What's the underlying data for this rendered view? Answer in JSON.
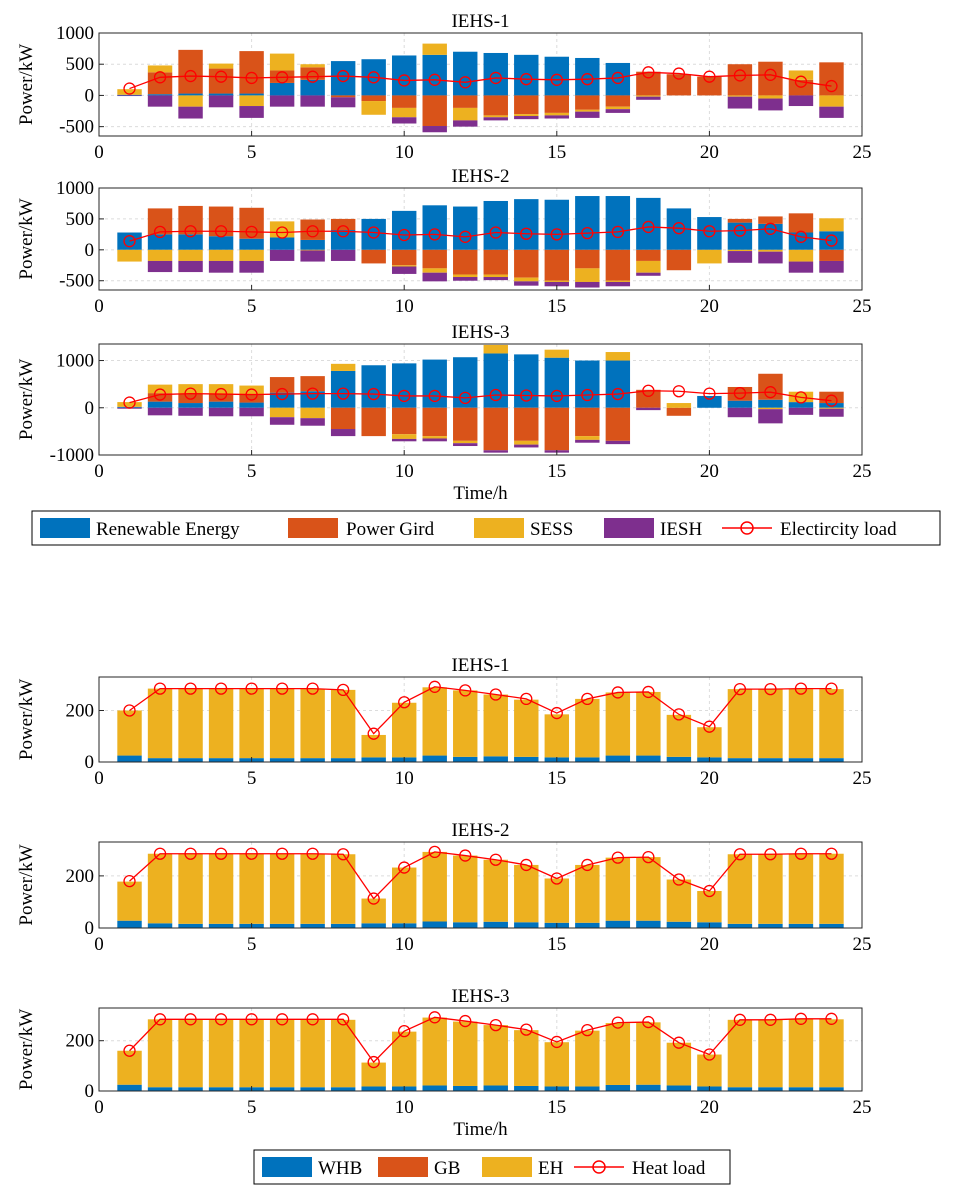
{
  "figure_electricity": {
    "legend": [
      {
        "name": "Renewable Energy",
        "kind": "bar",
        "color": "#0072BD"
      },
      {
        "name": "Power Gird",
        "kind": "bar",
        "color": "#D95319"
      },
      {
        "name": "SESS",
        "kind": "bar",
        "color": "#EDB120"
      },
      {
        "name": "IESH",
        "kind": "bar",
        "color": "#7E2F8E"
      },
      {
        "name": "Electircity load",
        "kind": "line",
        "color": "#FF0000"
      }
    ]
  },
  "figure_heat": {
    "legend": [
      {
        "name": "WHB",
        "kind": "bar",
        "color": "#0072BD"
      },
      {
        "name": "GB",
        "kind": "bar",
        "color": "#D95319"
      },
      {
        "name": "EH",
        "kind": "bar",
        "color": "#EDB120"
      },
      {
        "name": "Heat load",
        "kind": "line",
        "color": "#FF0000"
      }
    ]
  },
  "chart_data": [
    {
      "type": "bar",
      "stacked": true,
      "title": "IEHS-1",
      "xlabel": "",
      "ylabel": "Power/kW",
      "xlim": [
        0,
        25
      ],
      "ylim": [
        -650,
        1000
      ],
      "xticks": [
        "0",
        "5",
        "10",
        "15",
        "20",
        "25"
      ],
      "yticks": [
        "-500",
        "0",
        "500",
        "1000"
      ],
      "x": [
        1,
        2,
        3,
        4,
        5,
        6,
        7,
        8,
        9,
        10,
        11,
        12,
        13,
        14,
        15,
        16,
        17,
        18,
        19,
        20,
        21,
        22,
        23,
        24
      ],
      "series": [
        {
          "name": "Renewable Energy",
          "color": "#0072BD",
          "values": [
            10,
            20,
            30,
            30,
            30,
            200,
            250,
            550,
            580,
            640,
            650,
            700,
            680,
            650,
            620,
            600,
            520,
            0,
            0,
            0,
            0,
            0,
            0,
            0
          ]
        },
        {
          "name": "Power Gird",
          "color": "#D95319",
          "values": [
            0,
            350,
            700,
            400,
            680,
            200,
            200,
            -30,
            -90,
            -200,
            -490,
            -200,
            -320,
            -300,
            -280,
            -230,
            -180,
            380,
            340,
            300,
            500,
            540,
            250,
            530
          ]
        },
        {
          "name": "SESS",
          "color": "#EDB120",
          "values": [
            90,
            110,
            -180,
            80,
            -170,
            270,
            50,
            0,
            -220,
            -150,
            180,
            -200,
            -30,
            -30,
            -40,
            -30,
            -40,
            -20,
            0,
            0,
            -20,
            -50,
            150,
            -180
          ]
        },
        {
          "name": "IESH",
          "color": "#7E2F8E",
          "values": [
            -10,
            -180,
            -190,
            -190,
            -190,
            -180,
            -180,
            -160,
            0,
            -100,
            -100,
            -100,
            -50,
            -50,
            -50,
            -100,
            -60,
            -50,
            0,
            0,
            -190,
            -190,
            -170,
            -180
          ]
        }
      ],
      "line": {
        "name": "Electircity load",
        "color": "#FF0000",
        "values": [
          110,
          290,
          310,
          300,
          280,
          290,
          300,
          310,
          290,
          240,
          250,
          210,
          280,
          260,
          250,
          260,
          280,
          370,
          350,
          300,
          320,
          330,
          220,
          150
        ]
      }
    },
    {
      "type": "bar",
      "stacked": true,
      "title": "IEHS-2",
      "xlabel": "",
      "ylabel": "Power/kW",
      "xlim": [
        0,
        25
      ],
      "ylim": [
        -650,
        1000
      ],
      "xticks": [
        "0",
        "5",
        "10",
        "15",
        "20",
        "25"
      ],
      "yticks": [
        "-500",
        "0",
        "500",
        "1000"
      ],
      "x": [
        1,
        2,
        3,
        4,
        5,
        6,
        7,
        8,
        9,
        10,
        11,
        12,
        13,
        14,
        15,
        16,
        17,
        18,
        19,
        20,
        21,
        22,
        23,
        24
      ],
      "series": [
        {
          "name": "Renewable Energy",
          "color": "#0072BD",
          "values": [
            280,
            250,
            250,
            220,
            180,
            200,
            160,
            320,
            500,
            630,
            720,
            700,
            790,
            820,
            810,
            870,
            870,
            840,
            670,
            530,
            440,
            420,
            280,
            300
          ]
        },
        {
          "name": "Power Gird",
          "color": "#D95319",
          "values": [
            0,
            420,
            460,
            480,
            500,
            0,
            330,
            180,
            -220,
            -250,
            -300,
            -400,
            -400,
            -450,
            -500,
            -300,
            -500,
            -180,
            -330,
            0,
            60,
            120,
            310,
            -180
          ]
        },
        {
          "name": "SESS",
          "color": "#EDB120",
          "values": [
            -190,
            -180,
            -180,
            -180,
            -180,
            260,
            -10,
            0,
            0,
            -20,
            -70,
            -40,
            -40,
            -60,
            -20,
            -220,
            -20,
            -190,
            0,
            -220,
            -20,
            -30,
            -190,
            210
          ]
        },
        {
          "name": "IESH",
          "color": "#7E2F8E",
          "values": [
            0,
            -180,
            -180,
            -190,
            -190,
            -180,
            -180,
            -180,
            0,
            -120,
            -140,
            -60,
            -50,
            -70,
            -70,
            -90,
            -70,
            -50,
            0,
            0,
            -190,
            -190,
            -180,
            -190
          ]
        }
      ],
      "line": {
        "name": "Electircity load",
        "color": "#FF0000",
        "values": [
          140,
          290,
          300,
          300,
          290,
          280,
          300,
          300,
          280,
          240,
          250,
          210,
          280,
          260,
          250,
          270,
          290,
          370,
          350,
          300,
          310,
          340,
          210,
          150
        ]
      }
    },
    {
      "type": "bar",
      "stacked": true,
      "title": "IEHS-3",
      "xlabel": "Time/h",
      "ylabel": "Power/kW",
      "xlim": [
        0,
        25
      ],
      "ylim": [
        -1000,
        1350
      ],
      "xticks": [
        "0",
        "5",
        "10",
        "15",
        "20",
        "25"
      ],
      "yticks": [
        "-1000",
        "0",
        "1000"
      ],
      "x": [
        1,
        2,
        3,
        4,
        5,
        6,
        7,
        8,
        9,
        10,
        11,
        12,
        13,
        14,
        15,
        16,
        17,
        18,
        19,
        20,
        21,
        22,
        23,
        24
      ],
      "series": [
        {
          "name": "Renewable Energy",
          "color": "#0072BD",
          "values": [
            20,
            130,
            100,
            130,
            110,
            320,
            350,
            780,
            900,
            940,
            1020,
            1070,
            1150,
            1130,
            1060,
            1000,
            1000,
            0,
            0,
            250,
            150,
            170,
            120,
            100
          ]
        },
        {
          "name": "Power Gird",
          "color": "#D95319",
          "values": [
            0,
            180,
            200,
            170,
            180,
            330,
            320,
            -450,
            -600,
            -560,
            -600,
            -700,
            -900,
            -700,
            -900,
            -600,
            -700,
            380,
            -170,
            0,
            290,
            550,
            0,
            240
          ]
        },
        {
          "name": "SESS",
          "color": "#EDB120",
          "values": [
            100,
            180,
            200,
            200,
            180,
            -200,
            -220,
            150,
            0,
            -100,
            -50,
            -50,
            180,
            -80,
            170,
            -80,
            180,
            0,
            100,
            0,
            0,
            -30,
            220,
            -20
          ]
        },
        {
          "name": "IESH",
          "color": "#7E2F8E",
          "values": [
            -20,
            -160,
            -170,
            -180,
            -180,
            -160,
            -160,
            -150,
            0,
            -50,
            -60,
            -60,
            -50,
            -60,
            -50,
            -60,
            -70,
            -50,
            0,
            0,
            -200,
            -300,
            -150,
            -170
          ]
        }
      ],
      "line": {
        "name": "Electircity load",
        "color": "#FF0000",
        "values": [
          110,
          280,
          300,
          290,
          280,
          290,
          300,
          300,
          290,
          250,
          250,
          210,
          270,
          260,
          250,
          270,
          290,
          360,
          350,
          300,
          310,
          330,
          220,
          150
        ]
      }
    },
    {
      "type": "bar",
      "stacked": true,
      "title": "IEHS-1",
      "xlabel": "",
      "ylabel": "Power/kW",
      "xlim": [
        0,
        25
      ],
      "ylim": [
        0,
        330
      ],
      "xticks": [
        "0",
        "5",
        "10",
        "15",
        "20",
        "25"
      ],
      "yticks": [
        "0",
        "200"
      ],
      "x": [
        1,
        2,
        3,
        4,
        5,
        6,
        7,
        8,
        9,
        10,
        11,
        12,
        13,
        14,
        15,
        16,
        17,
        18,
        19,
        20,
        21,
        22,
        23,
        24
      ],
      "series": [
        {
          "name": "WHB",
          "color": "#0072BD",
          "values": [
            25,
            15,
            15,
            15,
            15,
            15,
            15,
            15,
            18,
            18,
            25,
            20,
            22,
            20,
            18,
            18,
            25,
            25,
            20,
            18,
            15,
            15,
            15,
            15
          ]
        },
        {
          "name": "GB",
          "color": "#D95319",
          "values": [
            0,
            0,
            0,
            0,
            0,
            0,
            0,
            0,
            0,
            0,
            0,
            0,
            0,
            0,
            0,
            0,
            0,
            0,
            0,
            0,
            0,
            0,
            0,
            0
          ]
        },
        {
          "name": "EH",
          "color": "#EDB120",
          "values": [
            175,
            270,
            270,
            270,
            270,
            270,
            270,
            265,
            87,
            212,
            265,
            258,
            240,
            222,
            167,
            227,
            245,
            247,
            163,
            117,
            268,
            268,
            268,
            268
          ]
        }
      ],
      "line": {
        "name": "Heat load",
        "color": "#FF0000",
        "values": [
          200,
          285,
          285,
          285,
          285,
          285,
          285,
          280,
          110,
          232,
          292,
          278,
          262,
          245,
          190,
          245,
          270,
          272,
          185,
          137,
          283,
          283,
          285,
          285
        ]
      }
    },
    {
      "type": "bar",
      "stacked": true,
      "title": "IEHS-2",
      "xlabel": "",
      "ylabel": "Power/kW",
      "xlim": [
        0,
        25
      ],
      "ylim": [
        0,
        330
      ],
      "xticks": [
        "0",
        "5",
        "10",
        "15",
        "20",
        "25"
      ],
      "yticks": [
        "0",
        "200"
      ],
      "x": [
        1,
        2,
        3,
        4,
        5,
        6,
        7,
        8,
        9,
        10,
        11,
        12,
        13,
        14,
        15,
        16,
        17,
        18,
        19,
        20,
        21,
        22,
        23,
        24
      ],
      "series": [
        {
          "name": "WHB",
          "color": "#0072BD",
          "values": [
            28,
            18,
            16,
            16,
            16,
            16,
            16,
            16,
            18,
            18,
            25,
            22,
            24,
            22,
            20,
            20,
            28,
            28,
            24,
            22,
            16,
            16,
            16,
            16
          ]
        },
        {
          "name": "GB",
          "color": "#D95319",
          "values": [
            0,
            0,
            0,
            0,
            0,
            0,
            0,
            0,
            0,
            0,
            0,
            0,
            0,
            0,
            0,
            0,
            0,
            0,
            0,
            0,
            0,
            0,
            0,
            0
          ]
        },
        {
          "name": "EH",
          "color": "#EDB120",
          "values": [
            150,
            267,
            269,
            269,
            269,
            269,
            269,
            267,
            95,
            214,
            267,
            256,
            238,
            220,
            170,
            222,
            242,
            244,
            162,
            120,
            267,
            267,
            269,
            269
          ]
        }
      ],
      "line": {
        "name": "Heat load",
        "color": "#FF0000",
        "values": [
          180,
          285,
          285,
          285,
          285,
          285,
          285,
          283,
          113,
          232,
          292,
          278,
          262,
          242,
          190,
          242,
          270,
          272,
          186,
          142,
          283,
          283,
          285,
          285
        ]
      }
    },
    {
      "type": "bar",
      "stacked": true,
      "title": "IEHS-3",
      "xlabel": "Time/h",
      "ylabel": "Power/kW",
      "xlim": [
        0,
        25
      ],
      "ylim": [
        0,
        330
      ],
      "xticks": [
        "0",
        "5",
        "10",
        "15",
        "20",
        "25"
      ],
      "yticks": [
        "0",
        "200"
      ],
      "x": [
        1,
        2,
        3,
        4,
        5,
        6,
        7,
        8,
        9,
        10,
        11,
        12,
        13,
        14,
        15,
        16,
        17,
        18,
        19,
        20,
        21,
        22,
        23,
        24
      ],
      "series": [
        {
          "name": "WHB",
          "color": "#0072BD",
          "values": [
            25,
            15,
            15,
            15,
            15,
            15,
            15,
            15,
            18,
            18,
            22,
            20,
            22,
            20,
            18,
            18,
            24,
            25,
            22,
            18,
            15,
            15,
            15,
            15
          ]
        },
        {
          "name": "GB",
          "color": "#D95319",
          "values": [
            0,
            0,
            0,
            0,
            0,
            0,
            0,
            0,
            0,
            0,
            0,
            0,
            0,
            0,
            0,
            0,
            0,
            0,
            0,
            0,
            0,
            0,
            0,
            0
          ]
        },
        {
          "name": "EH",
          "color": "#EDB120",
          "values": [
            135,
            270,
            270,
            270,
            270,
            270,
            270,
            268,
            95,
            218,
            270,
            256,
            240,
            222,
            176,
            222,
            246,
            248,
            170,
            127,
            268,
            268,
            270,
            270
          ]
        }
      ],
      "line": {
        "name": "Heat load",
        "color": "#FF0000",
        "values": [
          160,
          285,
          285,
          285,
          285,
          285,
          285,
          285,
          115,
          238,
          293,
          278,
          262,
          244,
          195,
          242,
          272,
          274,
          192,
          145,
          283,
          283,
          287,
          287
        ]
      }
    }
  ]
}
